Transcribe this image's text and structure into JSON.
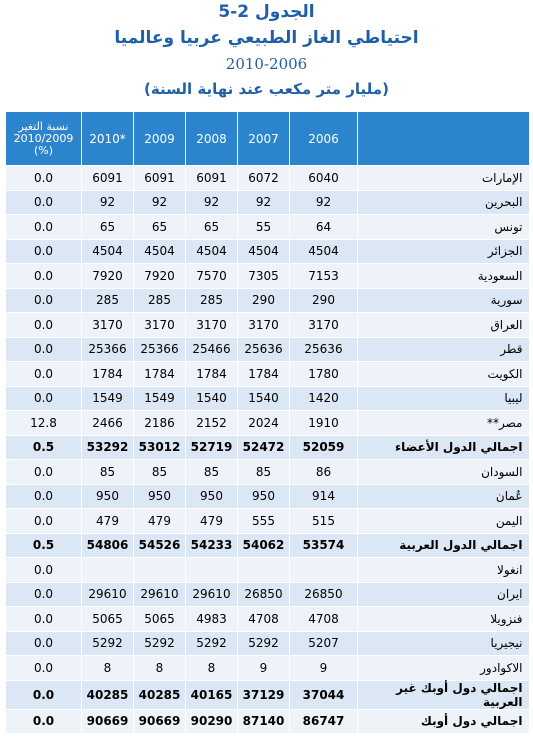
{
  "title": {
    "line1": "الجدول 2-5",
    "line2": "احتياطي الغاز الطبيعي عربيا وعالميا",
    "line3": "2010-2006",
    "line4": "(مليار متر مكعب عند نهاية السنة)"
  },
  "headers": {
    "pct": "نسبة التغير 2010/2009 (%)",
    "y2010": "2010*",
    "y2009": "2009",
    "y2008": "2008",
    "y2007": "2007",
    "y2006": "2006",
    "country": ""
  },
  "rows": [
    {
      "pct": "0.0",
      "v2010": "6091",
      "v2009": "6091",
      "v2008": "6091",
      "v2007": "6072",
      "v2006": "6040",
      "name": "الإمارات"
    },
    {
      "pct": "0.0",
      "v2010": "92",
      "v2009": "92",
      "v2008": "92",
      "v2007": "92",
      "v2006": "92",
      "name": "البحرين"
    },
    {
      "pct": "0.0",
      "v2010": "65",
      "v2009": "65",
      "v2008": "65",
      "v2007": "55",
      "v2006": "64",
      "name": "تونس"
    },
    {
      "pct": "0.0",
      "v2010": "4504",
      "v2009": "4504",
      "v2008": "4504",
      "v2007": "4504",
      "v2006": "4504",
      "name": "الجزائر"
    },
    {
      "pct": "0.0",
      "v2010": "7920",
      "v2009": "7920",
      "v2008": "7570",
      "v2007": "7305",
      "v2006": "7153",
      "name": "السعودية"
    },
    {
      "pct": "0.0",
      "v2010": "285",
      "v2009": "285",
      "v2008": "285",
      "v2007": "290",
      "v2006": "290",
      "name": "سورية"
    },
    {
      "pct": "0.0",
      "v2010": "3170",
      "v2009": "3170",
      "v2008": "3170",
      "v2007": "3170",
      "v2006": "3170",
      "name": "العراق"
    },
    {
      "pct": "0.0",
      "v2010": "25366",
      "v2009": "25366",
      "v2008": "25466",
      "v2007": "25636",
      "v2006": "25636",
      "name": "قطر"
    },
    {
      "pct": "0.0",
      "v2010": "1784",
      "v2009": "1784",
      "v2008": "1784",
      "v2007": "1784",
      "v2006": "1780",
      "name": "الكويت"
    },
    {
      "pct": "0.0",
      "v2010": "1549",
      "v2009": "1549",
      "v2008": "1540",
      "v2007": "1540",
      "v2006": "1420",
      "name": "ليبيا"
    },
    {
      "pct": "12.8",
      "v2010": "2466",
      "v2009": "2186",
      "v2008": "2152",
      "v2007": "2024",
      "v2006": "1910",
      "name": "مصر**"
    },
    {
      "pct": "0.5",
      "v2010": "53292",
      "v2009": "53012",
      "v2008": "52719",
      "v2007": "52472",
      "v2006": "52059",
      "name": "اجمالي الدول الأعضاء",
      "bold": true
    },
    {
      "pct": "0.0",
      "v2010": "85",
      "v2009": "85",
      "v2008": "85",
      "v2007": "85",
      "v2006": "86",
      "name": "السودان"
    },
    {
      "pct": "0.0",
      "v2010": "950",
      "v2009": "950",
      "v2008": "950",
      "v2007": "950",
      "v2006": "914",
      "name": "عُمان"
    },
    {
      "pct": "0.0",
      "v2010": "479",
      "v2009": "479",
      "v2008": "479",
      "v2007": "555",
      "v2006": "515",
      "name": "اليمن"
    },
    {
      "pct": "0.5",
      "v2010": "54806",
      "v2009": "54526",
      "v2008": "54233",
      "v2007": "54062",
      "v2006": "53574",
      "name": "اجمالي الدول العربية",
      "bold": true
    },
    {
      "pct": "0.0",
      "v2010": "",
      "v2009": "",
      "v2008": "",
      "v2007": "",
      "v2006": "",
      "name": "انغولا"
    },
    {
      "pct": "0.0",
      "v2010": "29610",
      "v2009": "29610",
      "v2008": "29610",
      "v2007": "26850",
      "v2006": "26850",
      "name": "ايران"
    },
    {
      "pct": "0.0",
      "v2010": "5065",
      "v2009": "5065",
      "v2008": "4983",
      "v2007": "4708",
      "v2006": "4708",
      "name": "فنزويلا"
    },
    {
      "pct": "0.0",
      "v2010": "5292",
      "v2009": "5292",
      "v2008": "5292",
      "v2007": "5292",
      "v2006": "5207",
      "name": "نيجيريا"
    },
    {
      "pct": "0.0",
      "v2010": "8",
      "v2009": "8",
      "v2008": "8",
      "v2007": "9",
      "v2006": "9",
      "name": "الاكوادور"
    },
    {
      "pct": "0.0",
      "v2010": "40285",
      "v2009": "40285",
      "v2008": "40165",
      "v2007": "37129",
      "v2006": "37044",
      "name": "اجمالي دول أوبك غير العربية",
      "bold": true
    },
    {
      "pct": "0.0",
      "v2010": "90669",
      "v2009": "90669",
      "v2008": "90290",
      "v2007": "87140",
      "v2006": "86747",
      "name": "اجمالي دول أوبك",
      "bold": true
    }
  ]
}
